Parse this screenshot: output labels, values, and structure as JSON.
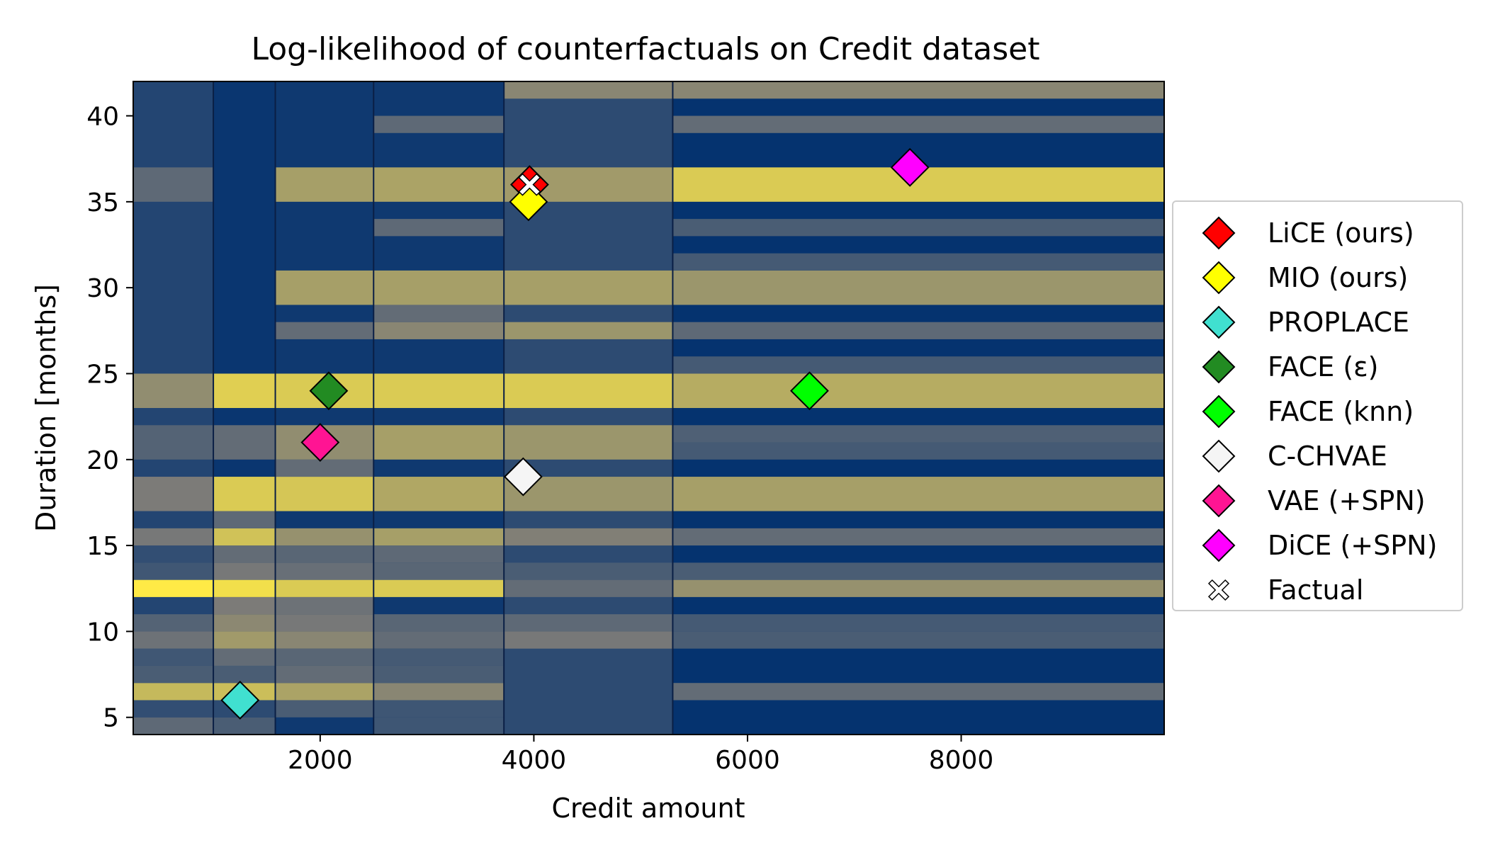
{
  "chart_data": {
    "type": "heatmap",
    "title": "Log-likelihood of counterfactuals on Credit dataset",
    "xlabel": "Credit amount",
    "ylabel": "Duration [months]",
    "xlim": [
      250,
      9900
    ],
    "ylim": [
      4,
      42
    ],
    "x_ticks": [
      2000,
      4000,
      6000,
      8000
    ],
    "y_ticks": [
      5,
      10,
      15,
      20,
      25,
      30,
      35,
      40
    ],
    "x_tick_labels": [
      "2000",
      "4000",
      "6000",
      "8000"
    ],
    "y_tick_labels": [
      "5",
      "10",
      "15",
      "20",
      "25",
      "30",
      "35",
      "40"
    ],
    "grid": false,
    "legend_position": "right",
    "colormap": [
      "#00306f",
      "#7c7b78",
      "#ffea46"
    ],
    "x_segments": [
      {
        "from": 250,
        "to": 1000,
        "base": 0.14,
        "bands": [
          [
            4,
            5,
            0.38
          ],
          [
            5,
            6,
            0.2
          ],
          [
            6,
            7,
            0.78
          ],
          [
            7,
            8,
            0.3
          ],
          [
            8,
            9,
            0.26
          ],
          [
            9,
            10,
            0.44
          ],
          [
            10,
            11,
            0.34
          ],
          [
            12,
            13,
            1.0
          ],
          [
            13,
            14,
            0.26
          ],
          [
            14,
            15,
            0.2
          ],
          [
            15,
            16,
            0.48
          ],
          [
            17,
            19,
            0.5
          ],
          [
            20,
            22,
            0.34
          ],
          [
            23,
            25,
            0.58
          ],
          [
            35,
            37,
            0.38
          ]
        ]
      },
      {
        "from": 1000,
        "to": 1580,
        "base": 0.04,
        "bands": [
          [
            4,
            5,
            0.3
          ],
          [
            5,
            6,
            0.18
          ],
          [
            6,
            7,
            0.8
          ],
          [
            7,
            8,
            0.3
          ],
          [
            8,
            9,
            0.4
          ],
          [
            9,
            10,
            0.64
          ],
          [
            10,
            11,
            0.56
          ],
          [
            11,
            12,
            0.5
          ],
          [
            12,
            13,
            0.95
          ],
          [
            13,
            14,
            0.48
          ],
          [
            14,
            15,
            0.4
          ],
          [
            15,
            16,
            0.82
          ],
          [
            16,
            17,
            0.38
          ],
          [
            17,
            19,
            0.86
          ],
          [
            20,
            22,
            0.4
          ],
          [
            23,
            25,
            0.88
          ]
        ]
      },
      {
        "from": 1580,
        "to": 2500,
        "base": 0.06,
        "bands": [
          [
            5,
            6,
            0.3
          ],
          [
            6,
            7,
            0.68
          ],
          [
            7,
            8,
            0.4
          ],
          [
            8,
            9,
            0.36
          ],
          [
            9,
            10,
            0.55
          ],
          [
            10,
            11,
            0.48
          ],
          [
            11,
            12,
            0.44
          ],
          [
            12,
            13,
            0.86
          ],
          [
            13,
            14,
            0.42
          ],
          [
            14,
            15,
            0.36
          ],
          [
            15,
            16,
            0.6
          ],
          [
            17,
            19,
            0.84
          ],
          [
            19,
            20,
            0.4
          ],
          [
            20,
            22,
            0.58
          ],
          [
            23,
            25,
            0.86
          ],
          [
            27,
            28,
            0.4
          ],
          [
            29,
            31,
            0.66
          ],
          [
            35,
            37,
            0.66
          ]
        ]
      },
      {
        "from": 2500,
        "to": 3720,
        "base": 0.06,
        "bands": [
          [
            4,
            5,
            0.25
          ],
          [
            5,
            6,
            0.25
          ],
          [
            6,
            7,
            0.55
          ],
          [
            7,
            8,
            0.3
          ],
          [
            8,
            9,
            0.28
          ],
          [
            9,
            10,
            0.4
          ],
          [
            10,
            11,
            0.36
          ],
          [
            12,
            13,
            0.86
          ],
          [
            13,
            14,
            0.36
          ],
          [
            14,
            15,
            0.38
          ],
          [
            15,
            16,
            0.66
          ],
          [
            17,
            19,
            0.7
          ],
          [
            20,
            22,
            0.66
          ],
          [
            23,
            25,
            0.86
          ],
          [
            27,
            28,
            0.55
          ],
          [
            28,
            29,
            0.4
          ],
          [
            29,
            31,
            0.66
          ],
          [
            33,
            34,
            0.38
          ],
          [
            35,
            37,
            0.68
          ],
          [
            39,
            40,
            0.38
          ]
        ]
      },
      {
        "from": 3720,
        "to": 5300,
        "base": 0.18,
        "bands": [
          [
            9,
            10,
            0.48
          ],
          [
            10,
            11,
            0.38
          ],
          [
            12,
            13,
            0.4
          ],
          [
            13,
            14,
            0.3
          ],
          [
            15,
            16,
            0.52
          ],
          [
            17,
            19,
            0.62
          ],
          [
            20,
            22,
            0.62
          ],
          [
            23,
            25,
            0.86
          ],
          [
            27,
            28,
            0.62
          ],
          [
            29,
            31,
            0.66
          ],
          [
            35,
            37,
            0.64
          ],
          [
            41,
            42,
            0.55
          ]
        ]
      },
      {
        "from": 5300,
        "to": 9900,
        "base": 0.02,
        "bands": [
          [
            6,
            7,
            0.4
          ],
          [
            9,
            10,
            0.3
          ],
          [
            10,
            11,
            0.28
          ],
          [
            12,
            13,
            0.6
          ],
          [
            13,
            14,
            0.3
          ],
          [
            15,
            16,
            0.4
          ],
          [
            17,
            19,
            0.66
          ],
          [
            20,
            21,
            0.28
          ],
          [
            21,
            22,
            0.32
          ],
          [
            23,
            25,
            0.72
          ],
          [
            25,
            26,
            0.28
          ],
          [
            27,
            28,
            0.38
          ],
          [
            29,
            31,
            0.62
          ],
          [
            31,
            32,
            0.28
          ],
          [
            33,
            34,
            0.3
          ],
          [
            35,
            37,
            0.86
          ],
          [
            39,
            40,
            0.4
          ],
          [
            41,
            42,
            0.55
          ]
        ]
      }
    ],
    "series": [
      {
        "name": "LiCE (ours)",
        "marker": "diamond",
        "color": "#ff0000",
        "x": [
          3960
        ],
        "y": [
          36
        ]
      },
      {
        "name": "MIO (ours)",
        "marker": "diamond",
        "color": "#ffff00",
        "x": [
          3950
        ],
        "y": [
          35
        ]
      },
      {
        "name": "PROPLACE",
        "marker": "diamond",
        "color": "#40e0d0",
        "x": [
          1250
        ],
        "y": [
          6
        ]
      },
      {
        "name": "FACE (ε)",
        "marker": "diamond",
        "color": "#228b22",
        "x": [
          2080
        ],
        "y": [
          24
        ]
      },
      {
        "name": "FACE (knn)",
        "marker": "diamond",
        "color": "#00ff00",
        "x": [
          6580
        ],
        "y": [
          24
        ]
      },
      {
        "name": "C-CHVAE",
        "marker": "diamond",
        "color": "#f5f5f5",
        "x": [
          3900
        ],
        "y": [
          19
        ]
      },
      {
        "name": "VAE (+SPN)",
        "marker": "diamond",
        "color": "#ff1493",
        "x": [
          2000
        ],
        "y": [
          21
        ]
      },
      {
        "name": "DiCE (+SPN)",
        "marker": "diamond",
        "color": "#ff00ff",
        "x": [
          7520
        ],
        "y": [
          37
        ]
      },
      {
        "name": "Factual",
        "marker": "x-cross",
        "color": "#ffffff",
        "x": [
          3960
        ],
        "y": [
          36
        ]
      }
    ]
  }
}
